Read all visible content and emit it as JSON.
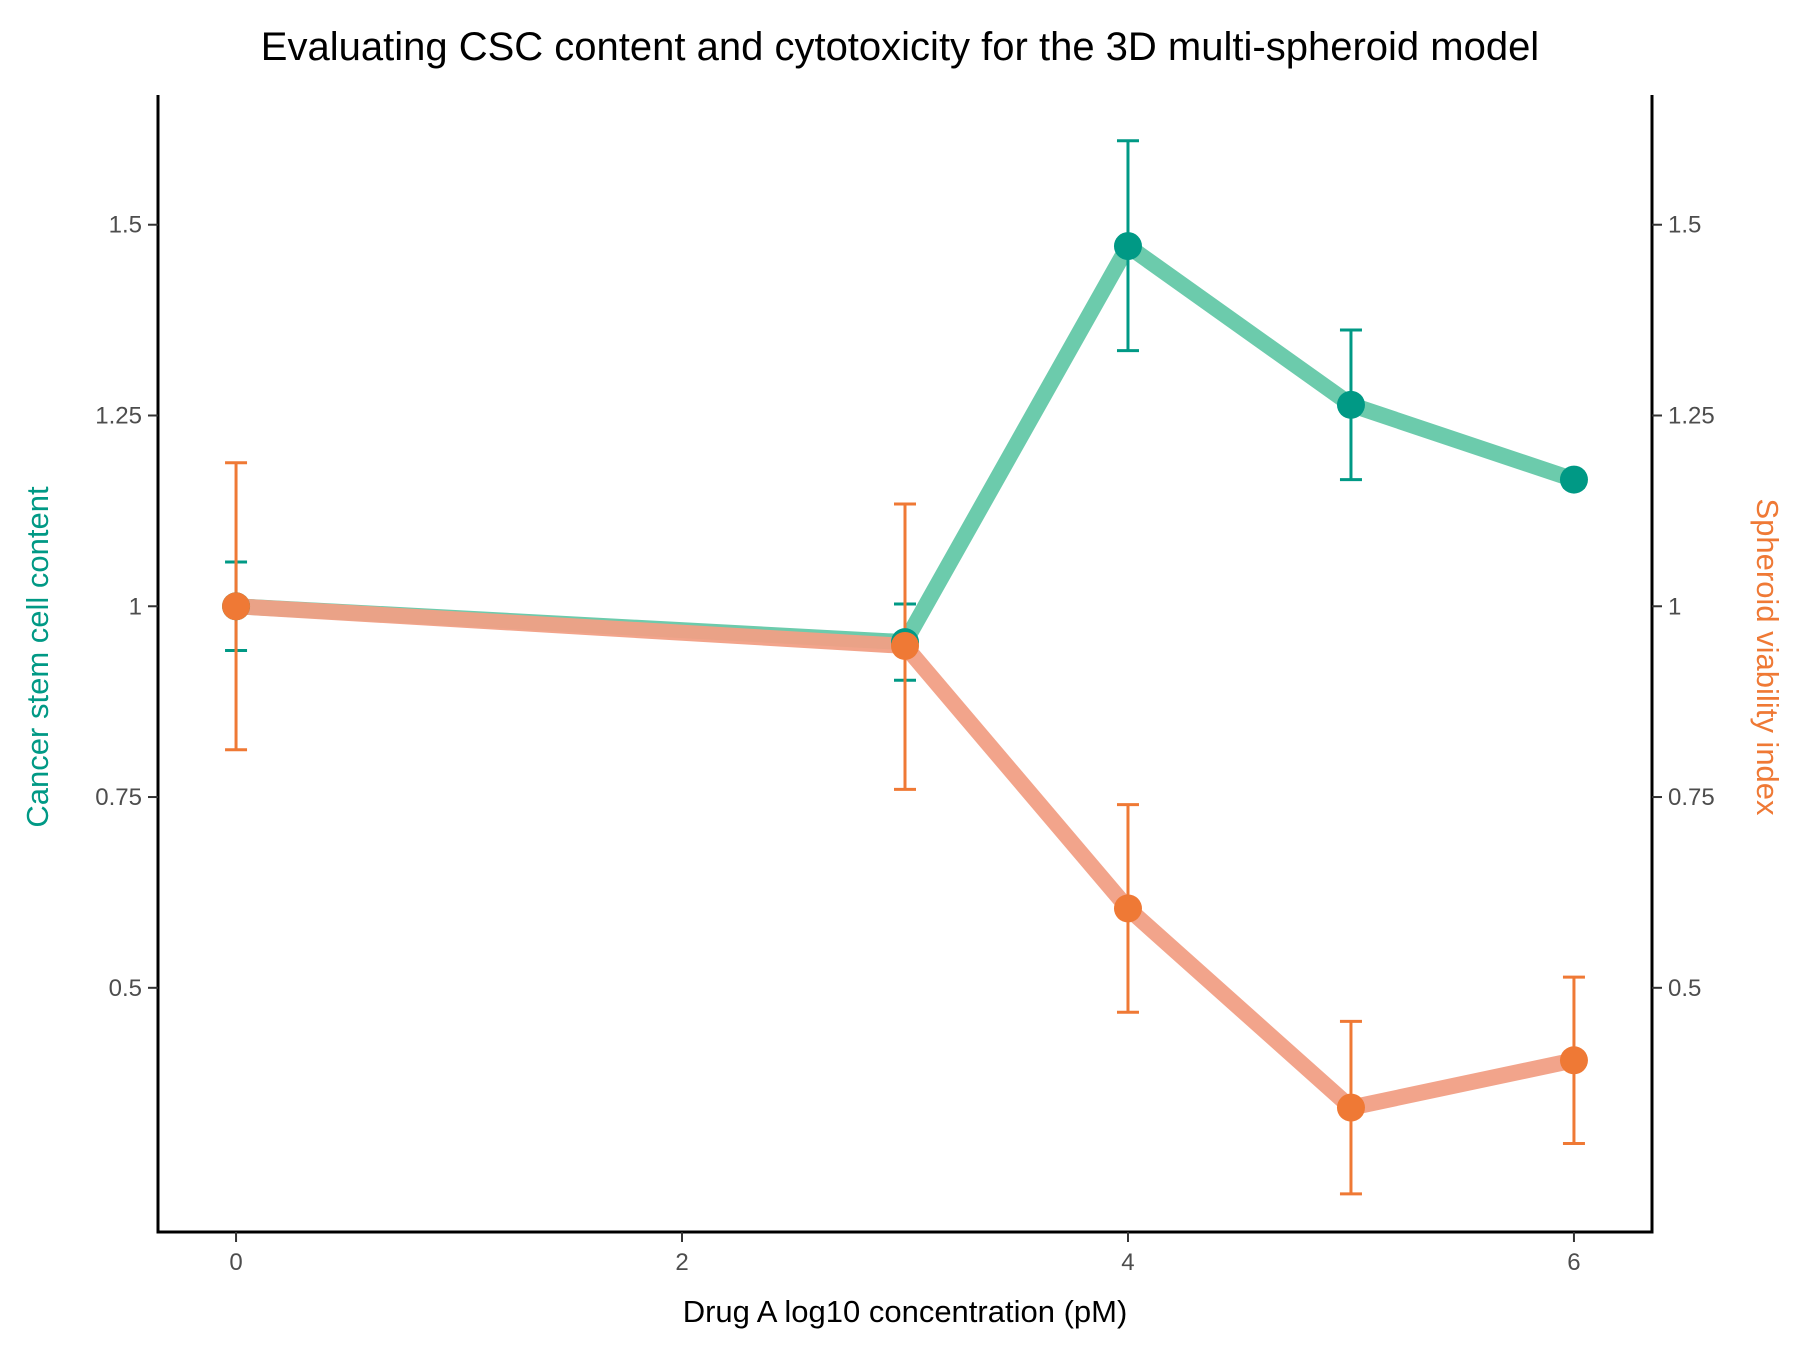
{
  "chart_data": {
    "type": "line",
    "title": "Evaluating CSC content and cytotoxicity for the 3D multi-spheroid model",
    "xlabel": "Drug A log10 concentration (pM)",
    "ylabel_left": "Cancer stem cell content",
    "ylabel_right": "Spheroid viability index",
    "x_ticks": [
      0,
      2,
      4,
      6
    ],
    "x_tick_labels": [
      "0",
      "2",
      "4",
      "6"
    ],
    "xlim": [
      -0.35,
      6.35
    ],
    "y_ticks": [
      0.5,
      0.75,
      1,
      1.25,
      1.5
    ],
    "y_tick_labels": [
      "0.5",
      "0.75",
      "1",
      "1.25",
      "1.5"
    ],
    "ylim": [
      0.18,
      1.67
    ],
    "grid": false,
    "series": [
      {
        "axis": "left",
        "x": [
          0,
          3,
          4,
          5,
          6
        ],
        "y": [
          1.0,
          0.953,
          1.472,
          1.264,
          1.166
        ],
        "err_low": [
          0.942,
          0.903,
          1.335,
          1.166,
          1.156
        ],
        "err_high": [
          1.058,
          1.003,
          1.61,
          1.362,
          1.176
        ],
        "line_color": "#6ccbac",
        "point_color": "#009985",
        "err_color": "#009985"
      },
      {
        "axis": "right",
        "x": [
          0,
          3,
          4,
          5,
          6
        ],
        "y": [
          1.0,
          0.948,
          0.604,
          0.343,
          0.405
        ],
        "err_low": [
          0.812,
          0.76,
          0.468,
          0.23,
          0.296
        ],
        "err_high": [
          1.188,
          1.134,
          0.74,
          0.456,
          0.514
        ],
        "line_color": "#f19f85",
        "point_color": "#ef7935",
        "err_color": "#ef7935"
      }
    ],
    "label_colors": {
      "left": "#009985",
      "right": "#ef7935"
    }
  }
}
